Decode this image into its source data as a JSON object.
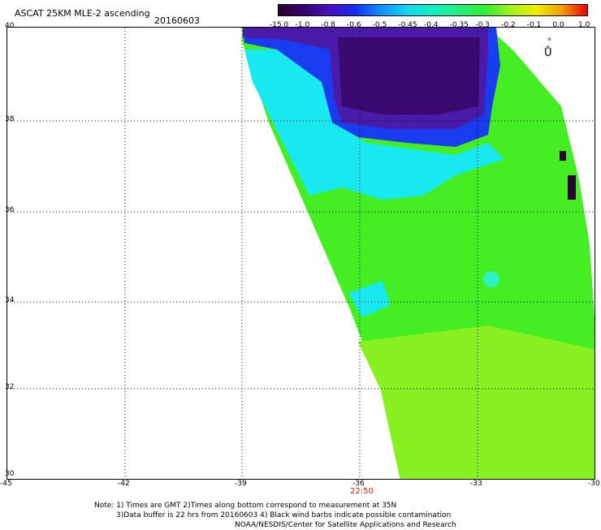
{
  "header": {
    "title": "ASCAT 25KM MLE-2 ascending",
    "date": "20160603"
  },
  "colorbar": {
    "ticks": [
      "-15.0",
      "-1.0",
      "-0.8",
      "-0.6",
      "-0.5",
      "-0.45",
      "-0.4",
      "-0.35",
      "-0.3",
      "-0.2",
      "-0.1",
      "0.0",
      "1.0"
    ],
    "colors": [
      "#2a0030",
      "#3a0070",
      "#4a10c0",
      "#1530f0",
      "#1090ff",
      "#10d8f0",
      "#10f0c0",
      "#20f080",
      "#30f030",
      "#a0f020",
      "#f0f000",
      "#f0a000",
      "#f00000"
    ]
  },
  "map": {
    "lat_labels": [
      "40",
      "38",
      "36",
      "34",
      "32",
      "30"
    ],
    "lon_labels": [
      "-45",
      "-42",
      "-39",
      "-36",
      "-33",
      "-30"
    ],
    "time_label": "22:50",
    "marker_symbol": "°",
    "marker_symbol2": "Ů"
  },
  "notes": {
    "line1": "Note: 1) Times are GMT 2)Times along bottom correspond to measurement at 35N",
    "line2": "3)Data buffer is 22 hrs from 20160603 4) Black wind barbs indicate possible contamination",
    "line3": "NOAA/NESDIS/Center for Satellite Applications and Research"
  }
}
